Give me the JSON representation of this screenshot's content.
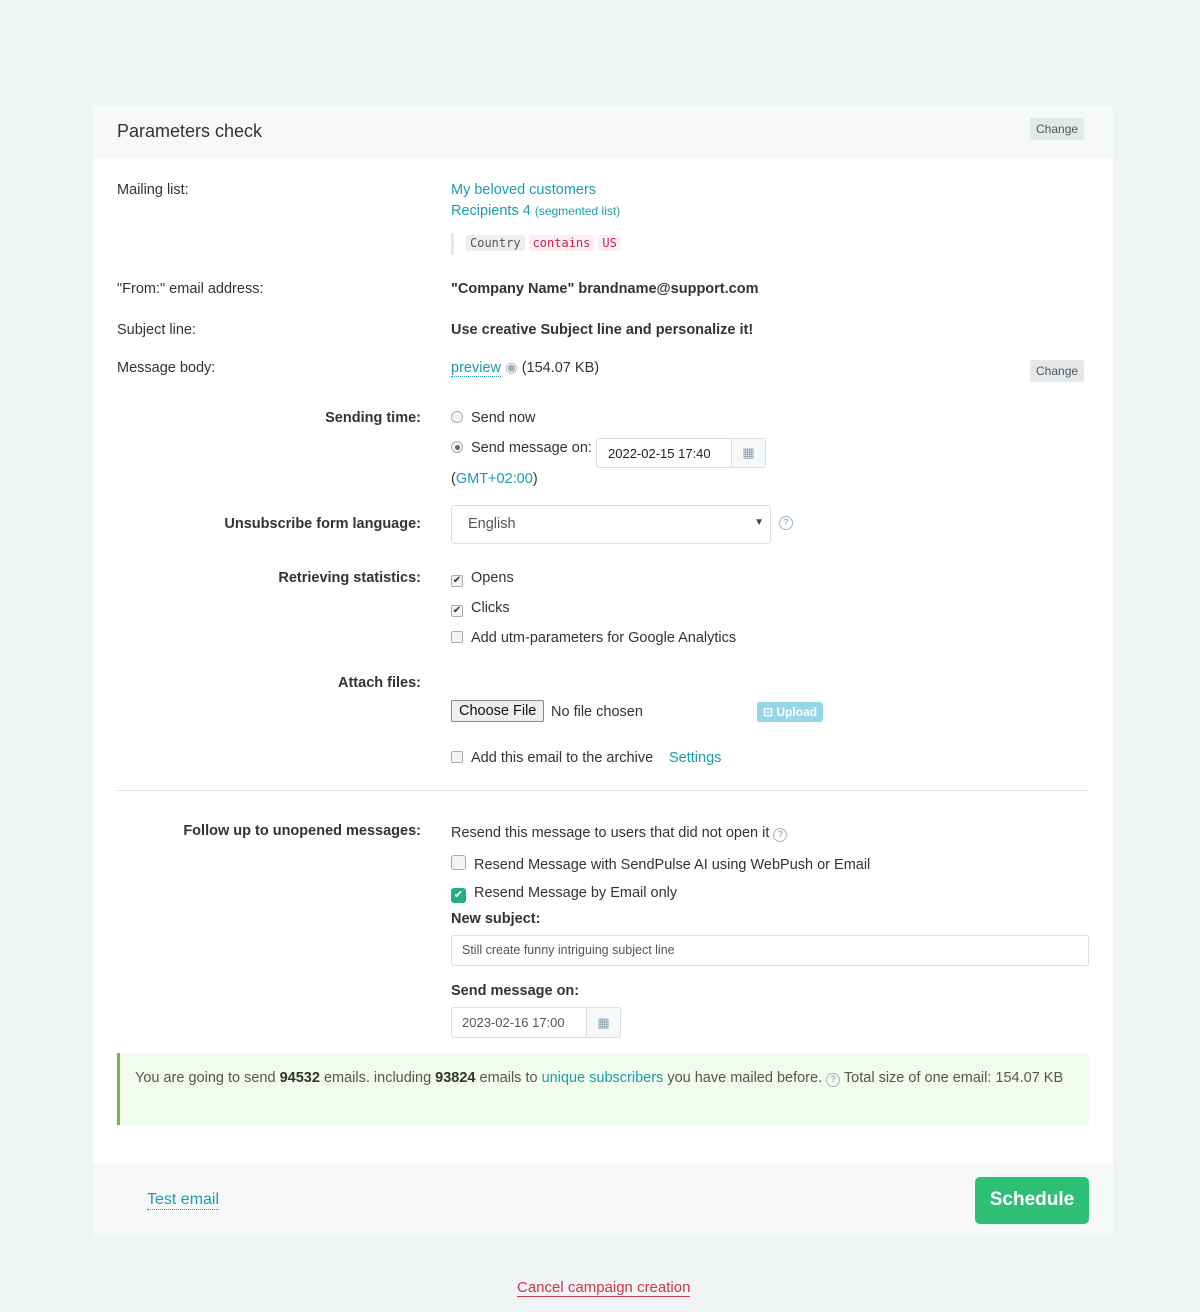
{
  "header": {
    "title": "Parameters check",
    "change_label": "Change"
  },
  "mailing": {
    "label": "Mailing list:",
    "list_name": "My beloved customers",
    "recipients": "Recipients 4",
    "segmented": "(segmented list)",
    "filter": {
      "field": "Country",
      "op": "contains",
      "value": "US"
    }
  },
  "from": {
    "label": "\"From:\" email address:",
    "value": "\"Company Name\" brandname@support.com"
  },
  "subject": {
    "label": "Subject line:",
    "value": "Use creative Subject line and personalize it!"
  },
  "body": {
    "label": "Message body:",
    "preview": "preview",
    "size": "(154.07 KB)",
    "change_label": "Change"
  },
  "sending": {
    "label": "Sending time:",
    "send_now": "Send now",
    "send_on": "Send message on:",
    "datetime": "2022-02-15 17:40",
    "tz_open": "(",
    "tz": "GMT+02:00",
    "tz_close": ")",
    "selected": "send_on"
  },
  "unsub": {
    "label": "Unsubscribe form language:",
    "value": "English"
  },
  "stats": {
    "label": "Retrieving statistics:",
    "opens": "Opens",
    "opens_checked": true,
    "clicks": "Clicks",
    "clicks_checked": true,
    "utm": "Add utm-parameters for Google Analytics",
    "utm_checked": false
  },
  "attach": {
    "label": "Attach files:",
    "choose": "Choose File",
    "no_file": "No file chosen",
    "upload": "Upload",
    "archive": "Add this email to the archive",
    "archive_checked": false,
    "settings": "Settings"
  },
  "followup": {
    "label": "Follow up to unopened messages:",
    "desc": "Resend this message to users that did not open it",
    "ai": "Resend Message with SendPulse AI using WebPush or Email",
    "ai_checked": false,
    "email_only": "Resend Message by Email only",
    "email_only_checked": true,
    "new_subject_label": "New subject:",
    "new_subject": "Still create funny intriguing subject line",
    "send_on_label": "Send message on:",
    "datetime": "2023-02-16 17:00"
  },
  "summary": {
    "t1": "You are going to send ",
    "total": "94532",
    "t2": " emails. including ",
    "unique": "93824",
    "t3": " emails to ",
    "link": "unique subscribers",
    "t4": " you have mailed before. ",
    "t5": " Total size of one email: 154.07 KB"
  },
  "footer": {
    "test_email": "Test email",
    "schedule": "Schedule"
  },
  "cancel": "Cancel campaign creation",
  "colors": {
    "accent": "#1a9cb0",
    "schedule": "#2ebf77",
    "cancel": "#c9374a"
  }
}
